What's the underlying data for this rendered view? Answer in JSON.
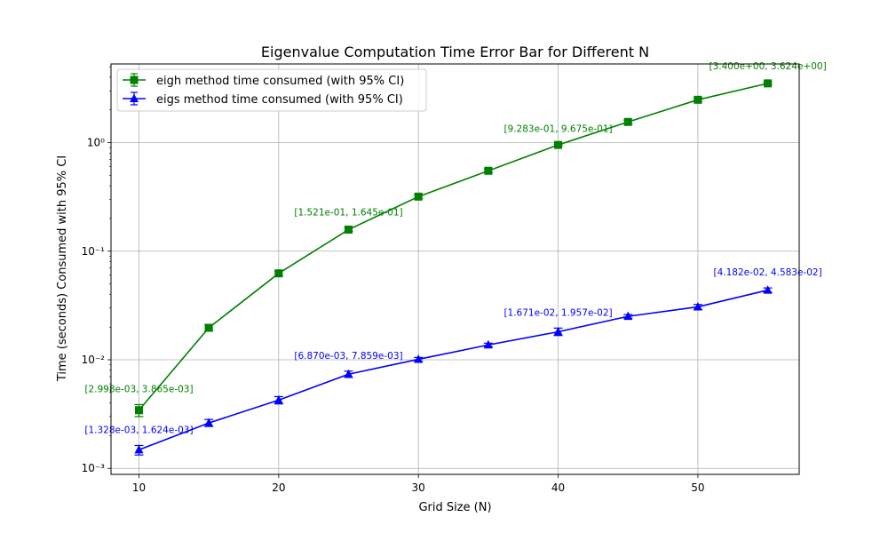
{
  "chart_data": {
    "type": "line",
    "title": "Eigenvalue Computation Time Error Bar for Different N",
    "xlabel": "Grid Size (N)",
    "ylabel": "Time (seconds) Consumed with 95% CI",
    "yscale": "log",
    "xlim": [
      8,
      57.25
    ],
    "ylim": [
      0.00088,
      5.3
    ],
    "grid": true,
    "legend_position": "top-left",
    "x_ticks": [
      10,
      20,
      30,
      40,
      50
    ],
    "x_tick_labels": [
      "10",
      "20",
      "30",
      "40",
      "50"
    ],
    "y_ticks": [
      0.001,
      0.01,
      0.1,
      1
    ],
    "y_tick_labels": [
      "10⁻³",
      "10⁻²",
      "10⁻¹",
      "10⁰"
    ],
    "x": [
      10,
      15,
      20,
      25,
      30,
      35,
      40,
      45,
      50,
      55
    ],
    "series": [
      {
        "name": "eigh method time consumed (with 95% CI)",
        "color": "#008000",
        "marker": "square",
        "values": [
          0.00343,
          0.0197,
          0.0625,
          0.158,
          0.318,
          0.55,
          0.952,
          1.55,
          2.48,
          3.51
        ],
        "ci_low": [
          0.002998,
          0.0184,
          0.0592,
          0.1521,
          0.305,
          0.528,
          0.9283,
          1.49,
          2.38,
          3.4
        ],
        "ci_high": [
          0.003865,
          0.021,
          0.0658,
          0.1645,
          0.331,
          0.572,
          0.9675,
          1.61,
          2.58,
          3.624
        ],
        "annotations": [
          {
            "x": 10,
            "text": "[2.998e-03, 3.865e-03]"
          },
          {
            "x": 25,
            "text": "[1.521e-01, 1.645e-01]"
          },
          {
            "x": 40,
            "text": "[9.283e-01, 9.675e-01]"
          },
          {
            "x": 55,
            "text": "[3.400e+00, 3.624e+00]"
          }
        ]
      },
      {
        "name": "eigs method time consumed (with 95% CI)",
        "color": "#0000ff",
        "marker": "triangle",
        "values": [
          0.00148,
          0.00262,
          0.00425,
          0.00736,
          0.0101,
          0.0137,
          0.0181,
          0.0251,
          0.0307,
          0.0438
        ],
        "ci_low": [
          0.001328,
          0.00243,
          0.00392,
          0.00687,
          0.00965,
          0.0132,
          0.01671,
          0.0241,
          0.0291,
          0.04182
        ],
        "ci_high": [
          0.001624,
          0.00282,
          0.00458,
          0.007859,
          0.0105,
          0.0142,
          0.01957,
          0.0261,
          0.0323,
          0.04583
        ],
        "annotations": [
          {
            "x": 10,
            "text": "[1.328e-03, 1.624e-03]"
          },
          {
            "x": 25,
            "text": "[6.870e-03, 7.859e-03]"
          },
          {
            "x": 40,
            "text": "[1.671e-02, 1.957e-02]"
          },
          {
            "x": 55,
            "text": "[4.182e-02, 4.583e-02]"
          }
        ]
      }
    ]
  }
}
